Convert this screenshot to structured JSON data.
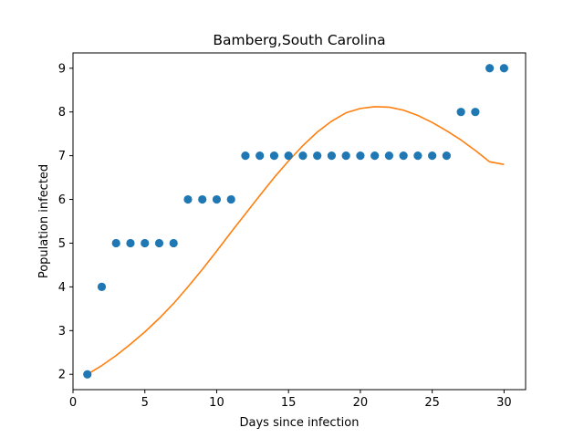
{
  "chart_data": {
    "type": "scatter",
    "title": "Bamberg,South Carolina",
    "xlabel": "Days since infection",
    "ylabel": "Population infected",
    "xlim": [
      0,
      31.5
    ],
    "ylim": [
      1.65,
      9.35
    ],
    "xticks": [
      0,
      5,
      10,
      15,
      20,
      25,
      30
    ],
    "yticks": [
      2,
      3,
      4,
      5,
      6,
      7,
      8,
      9
    ],
    "grid": false,
    "series": [
      {
        "kind": "scatter",
        "color": "#1f77b4",
        "x": [
          1,
          2,
          3,
          4,
          5,
          6,
          7,
          8,
          9,
          10,
          11,
          12,
          13,
          14,
          15,
          16,
          17,
          18,
          19,
          20,
          21,
          22,
          23,
          24,
          25,
          26,
          27,
          28,
          29,
          30
        ],
        "y": [
          2,
          4,
          5,
          5,
          5,
          5,
          5,
          6,
          6,
          6,
          6,
          7,
          7,
          7,
          7,
          7,
          7,
          7,
          7,
          7,
          7,
          7,
          7,
          7,
          7,
          7,
          8,
          8,
          9,
          9
        ]
      },
      {
        "kind": "line",
        "color": "#ff7f0e",
        "x": [
          1,
          2,
          3,
          4,
          5,
          6,
          7,
          8,
          9,
          10,
          11,
          12,
          13,
          14,
          15,
          16,
          17,
          18,
          19,
          20,
          21,
          22,
          23,
          24,
          25,
          26,
          27,
          28,
          29,
          30
        ],
        "y": [
          2.0,
          2.2,
          2.43,
          2.69,
          2.97,
          3.28,
          3.62,
          4.0,
          4.4,
          4.82,
          5.25,
          5.67,
          6.09,
          6.5,
          6.88,
          7.23,
          7.54,
          7.79,
          7.98,
          8.08,
          8.12,
          8.11,
          8.04,
          7.92,
          7.76,
          7.57,
          7.36,
          7.12,
          6.86,
          6.8
        ]
      }
    ]
  }
}
